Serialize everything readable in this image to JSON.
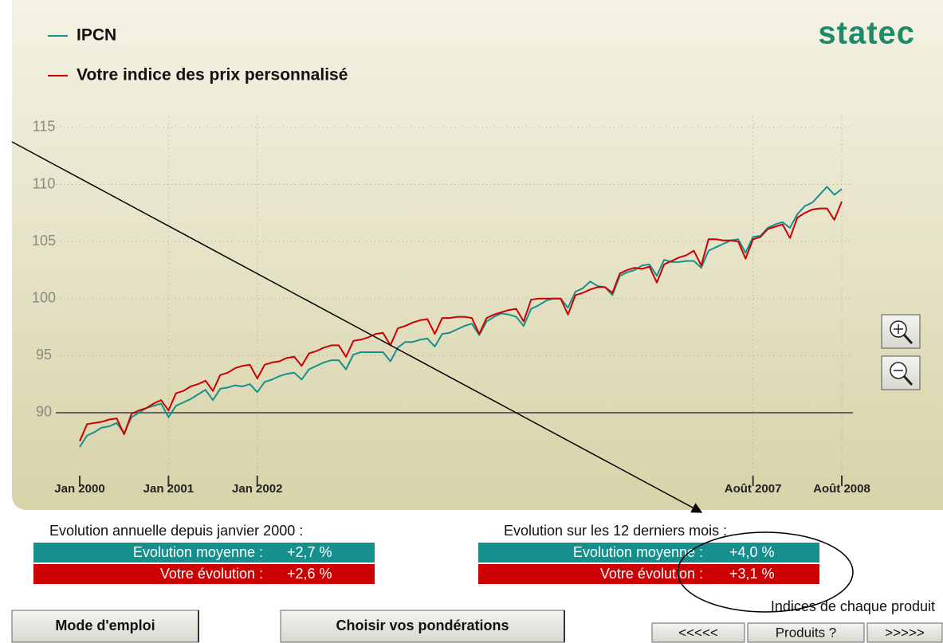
{
  "logo": "statec",
  "chart_data": {
    "type": "line",
    "categories": [
      "Jan 2000",
      null,
      null,
      null,
      null,
      null,
      null,
      null,
      null,
      null,
      null,
      null,
      "Jan 2001",
      null,
      null,
      null,
      null,
      null,
      null,
      null,
      null,
      null,
      null,
      null,
      "Jan 2002",
      null,
      null,
      null,
      null,
      null,
      null,
      null,
      null,
      null,
      null,
      null,
      null,
      null,
      null,
      null,
      null,
      null,
      null,
      null,
      null,
      null,
      null,
      null,
      null,
      null,
      null,
      null,
      null,
      null,
      null,
      null,
      null,
      null,
      null,
      null,
      null,
      null,
      null,
      null,
      null,
      null,
      null,
      null,
      null,
      null,
      null,
      null,
      null,
      null,
      null,
      null,
      null,
      null,
      null,
      null,
      null,
      null,
      null,
      null,
      null,
      null,
      null,
      null,
      null,
      null,
      null,
      "Août 2007",
      null,
      null,
      null,
      null,
      null,
      null,
      null,
      null,
      null,
      null,
      null,
      "Août 2008"
    ],
    "series": [
      {
        "name": "IPCN",
        "color": "#16908c",
        "values": [
          87.0,
          88.0,
          88.3,
          88.7,
          88.8,
          89.1,
          88.2,
          89.6,
          90.0,
          90.4,
          90.6,
          90.8,
          89.6,
          90.6,
          90.9,
          91.2,
          91.6,
          92.0,
          91.1,
          92.1,
          92.2,
          92.4,
          92.3,
          92.5,
          91.8,
          92.7,
          92.9,
          93.2,
          93.4,
          93.5,
          92.9,
          93.8,
          94.1,
          94.4,
          94.6,
          94.6,
          93.8,
          95.1,
          95.3,
          95.3,
          95.3,
          95.3,
          94.5,
          95.7,
          96.2,
          96.2,
          96.4,
          96.5,
          95.8,
          96.9,
          97.0,
          97.3,
          97.6,
          97.8,
          96.8,
          98.0,
          98.4,
          98.7,
          98.6,
          98.4,
          97.6,
          99.1,
          99.4,
          99.8,
          100.0,
          100.0,
          99.2,
          100.6,
          100.9,
          101.5,
          101.1,
          101.0,
          100.3,
          102.0,
          102.3,
          102.5,
          102.9,
          103.0,
          102.0,
          103.4,
          103.2,
          103.2,
          103.3,
          103.3,
          102.7,
          104.2,
          104.5,
          104.8,
          105.1,
          105.2,
          104.0,
          105.4,
          105.5,
          106.2,
          106.5,
          106.7,
          106.2,
          107.4,
          108.1,
          108.4,
          109.1,
          109.8,
          109.1,
          109.6
        ]
      },
      {
        "name": "Votre indice des prix personnalisé",
        "color": "#cc0000",
        "values": [
          87.5,
          89.0,
          89.1,
          89.2,
          89.4,
          89.5,
          88.1,
          89.9,
          90.2,
          90.4,
          90.8,
          91.1,
          90.2,
          91.7,
          91.9,
          92.3,
          92.5,
          92.8,
          91.9,
          93.3,
          93.5,
          93.9,
          94.1,
          94.2,
          93.0,
          94.2,
          94.4,
          94.5,
          94.8,
          94.9,
          94.1,
          95.2,
          95.4,
          95.7,
          95.9,
          95.9,
          94.9,
          96.3,
          96.4,
          96.6,
          96.9,
          97.0,
          95.9,
          97.4,
          97.6,
          97.9,
          98.1,
          98.2,
          96.9,
          98.3,
          98.3,
          98.4,
          98.4,
          98.3,
          96.9,
          98.3,
          98.6,
          98.8,
          99.0,
          99.1,
          98.0,
          99.9,
          100.0,
          100.0,
          100.0,
          100.0,
          98.6,
          100.3,
          100.5,
          100.8,
          101.0,
          101.0,
          100.5,
          102.2,
          102.5,
          102.7,
          102.6,
          102.8,
          101.4,
          103.0,
          103.3,
          103.6,
          103.8,
          104.2,
          102.9,
          105.2,
          105.2,
          105.1,
          105.1,
          105.0,
          103.5,
          105.2,
          105.4,
          106.1,
          106.3,
          106.5,
          105.3,
          107.1,
          107.5,
          107.8,
          107.9,
          107.9,
          106.9,
          108.5
        ]
      }
    ],
    "ylim": [
      84.2,
      116.0
    ],
    "yticks": [
      90,
      95,
      100,
      105,
      110,
      115
    ],
    "grid": true
  },
  "annual": {
    "title": "Evolution annuelle depuis janvier 2000 :",
    "average_label": "Evolution moyenne :",
    "average_value": "+2,7 %",
    "yours_label": "Votre évolution :",
    "yours_value": "+2,6 %"
  },
  "last_12_months": {
    "title": "Evolution sur les 12 derniers mois :",
    "average_label": "Evolution moyenne :",
    "average_value": "+4,0 %",
    "yours_label": "Votre évolution :",
    "yours_value": "+3,1 %"
  },
  "product_indices_label": "Indices de chaque produit",
  "buttons": [
    "Mode d'emploi",
    "Choisir vos pondérations",
    "<<<<<",
    "Produits ?",
    ">>>>>"
  ]
}
